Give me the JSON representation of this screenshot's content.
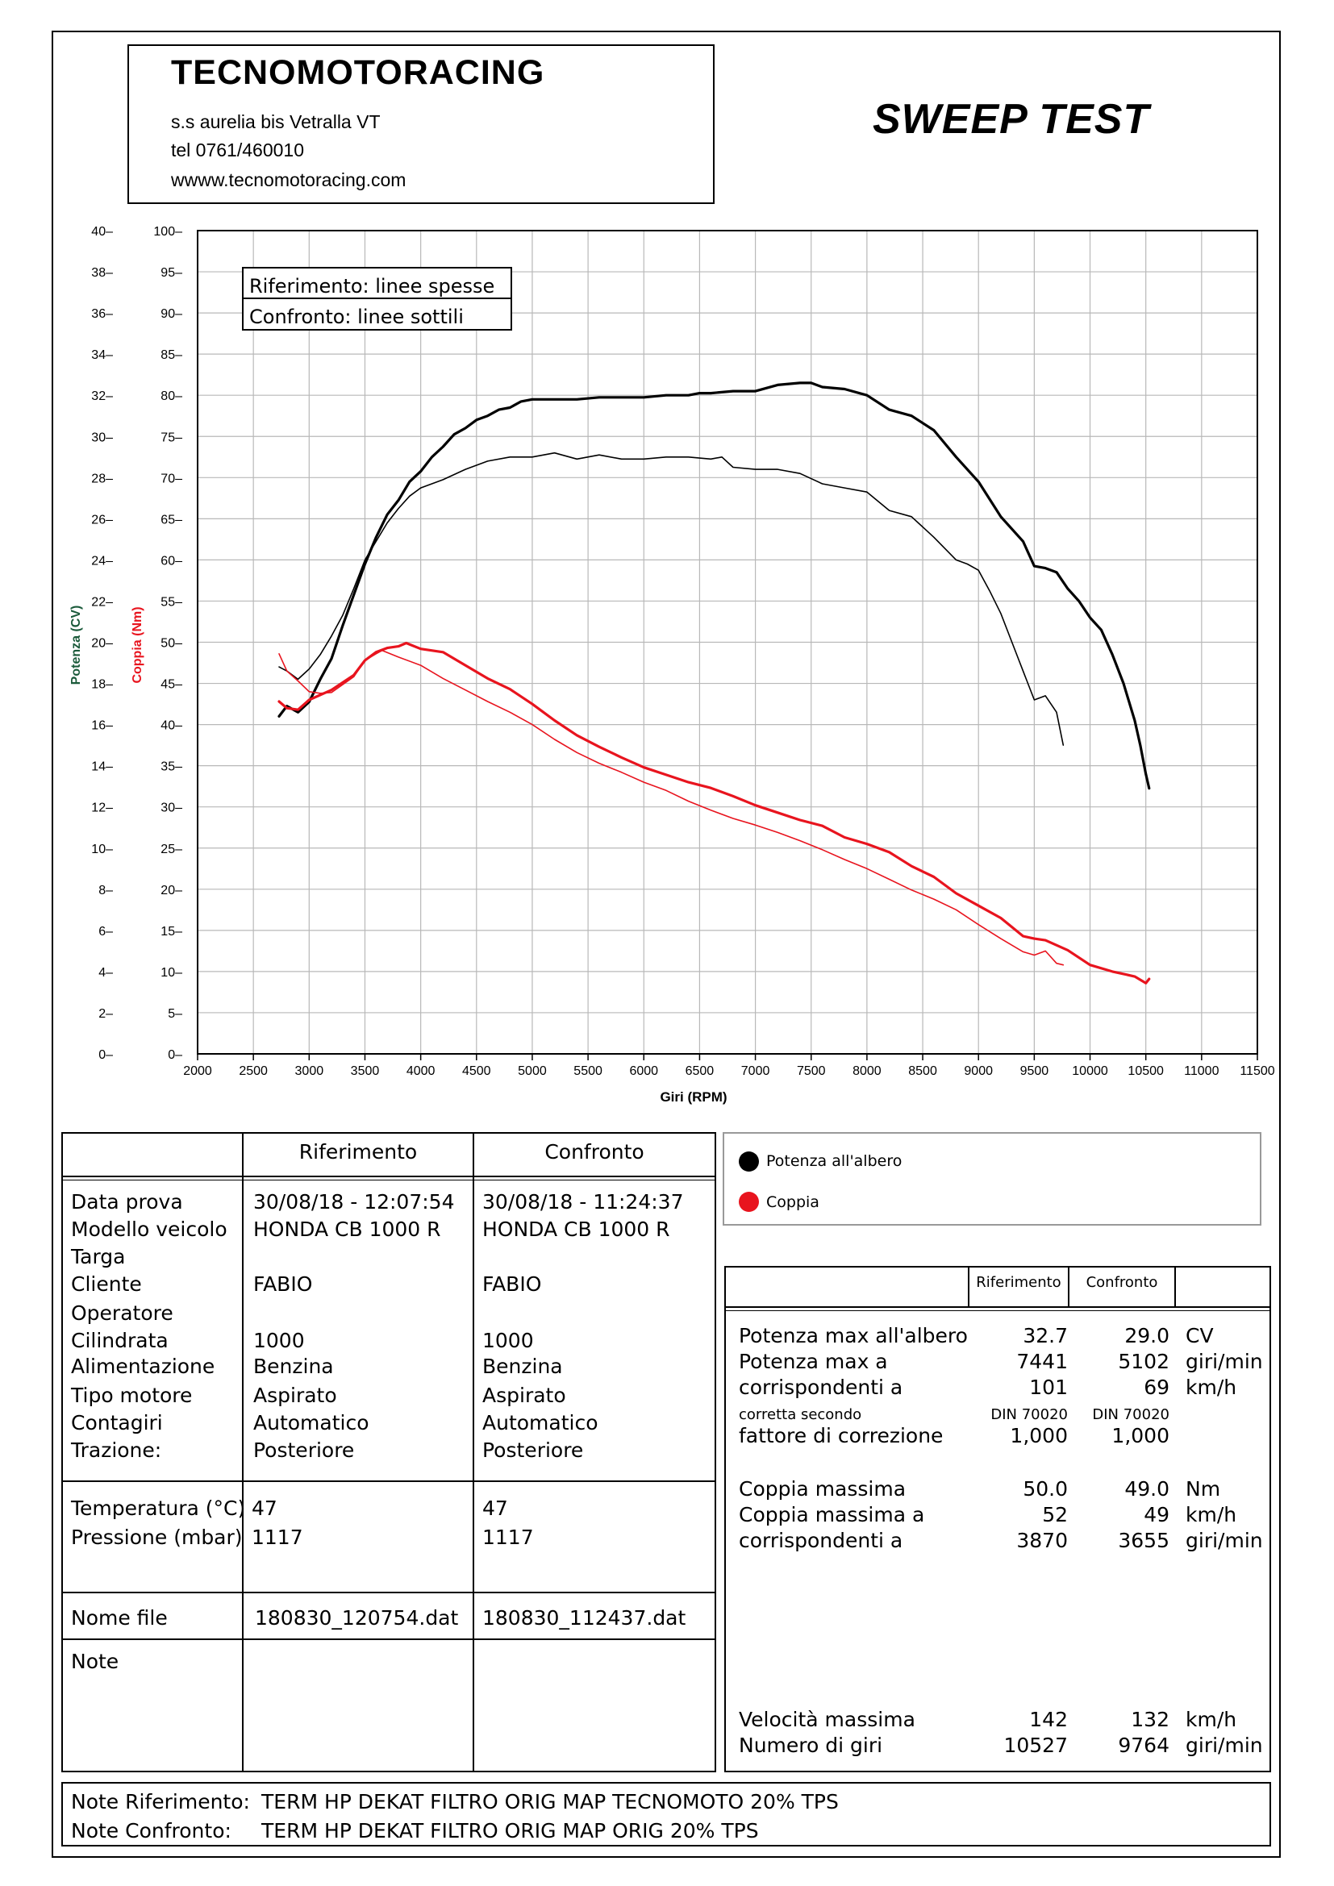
{
  "header": {
    "company": "TECNOMOTORACING",
    "address": "s.s aurelia bis  Vetralla  VT",
    "phone": "tel 0761/460010",
    "website": "wwww.tecnomotoracing.com",
    "test_title": "SWEEP TEST"
  },
  "chart_legend_box": {
    "line1": "Riferimento: linee spesse",
    "line2": "Confronto: linee sottili"
  },
  "chart_data": {
    "type": "line",
    "xlabel": "Giri (RPM)",
    "ylabel_left": "Potenza (CV)",
    "ylabel_right": "Coppia (Nm)",
    "xlim": [
      2000,
      11500
    ],
    "ylim_power": [
      0,
      40
    ],
    "ylim_torque": [
      0,
      100
    ],
    "x_ticks": [
      "2000",
      "2500",
      "3000",
      "3500",
      "4000",
      "4500",
      "5000",
      "5500",
      "6000",
      "6500",
      "7000",
      "7500",
      "8000",
      "8500",
      "9000",
      "9500",
      "10000",
      "10500",
      "11000",
      "11500"
    ],
    "y_ticks_power": [
      "0",
      "2",
      "4",
      "6",
      "8",
      "10",
      "12",
      "14",
      "16",
      "18",
      "20",
      "22",
      "24",
      "26",
      "28",
      "30",
      "32",
      "34",
      "36",
      "38",
      "40"
    ],
    "y_ticks_torque": [
      "0",
      "5",
      "10",
      "15",
      "20",
      "25",
      "30",
      "35",
      "40",
      "45",
      "50",
      "55",
      "60",
      "65",
      "70",
      "75",
      "80",
      "85",
      "90",
      "95",
      "100"
    ],
    "grid": true,
    "series": [
      {
        "name": "Potenza all'albero",
        "run": "Riferimento",
        "axis": "power",
        "color": "#000000",
        "style": "thick",
        "x": [
          2730,
          2800,
          2900,
          3000,
          3100,
          3200,
          3300,
          3400,
          3500,
          3600,
          3700,
          3800,
          3900,
          4000,
          4100,
          4200,
          4300,
          4400,
          4500,
          4600,
          4700,
          4800,
          4900,
          5000,
          5200,
          5400,
          5600,
          5800,
          6000,
          6200,
          6400,
          6500,
          6600,
          6800,
          7000,
          7200,
          7400,
          7500,
          7600,
          7800,
          8000,
          8200,
          8400,
          8600,
          8800,
          9000,
          9200,
          9400,
          9500,
          9600,
          9700,
          9800,
          9900,
          10000,
          10100,
          10200,
          10300,
          10400,
          10450,
          10500,
          10530
        ],
        "y": [
          16.4,
          16.9,
          16.6,
          17.1,
          18.2,
          19.2,
          20.8,
          22.3,
          23.8,
          25.1,
          26.2,
          26.9,
          27.8,
          28.3,
          29.0,
          29.5,
          30.1,
          30.4,
          30.8,
          31.0,
          31.3,
          31.4,
          31.7,
          31.8,
          31.8,
          31.8,
          31.9,
          31.9,
          31.9,
          32.0,
          32.0,
          32.1,
          32.1,
          32.2,
          32.2,
          32.5,
          32.6,
          32.6,
          32.4,
          32.3,
          32.0,
          31.3,
          31.0,
          30.3,
          29.0,
          27.8,
          26.1,
          24.9,
          23.7,
          23.6,
          23.4,
          22.6,
          22.0,
          21.2,
          20.6,
          19.4,
          18.0,
          16.2,
          15.0,
          13.6,
          12.9
        ]
      },
      {
        "name": "Potenza all'albero",
        "run": "Confronto",
        "axis": "power",
        "color": "#000000",
        "style": "thin",
        "x": [
          2730,
          2800,
          2900,
          3000,
          3100,
          3200,
          3300,
          3400,
          3500,
          3600,
          3700,
          3800,
          3900,
          4000,
          4200,
          4400,
          4600,
          4800,
          5000,
          5200,
          5400,
          5600,
          5800,
          6000,
          6200,
          6400,
          6600,
          6700,
          6800,
          7000,
          7200,
          7400,
          7600,
          7800,
          8000,
          8200,
          8400,
          8600,
          8800,
          8900,
          9000,
          9100,
          9200,
          9300,
          9400,
          9500,
          9600,
          9700,
          9760
        ],
        "y": [
          18.8,
          18.6,
          18.2,
          18.7,
          19.4,
          20.3,
          21.3,
          22.6,
          24.0,
          24.9,
          25.8,
          26.5,
          27.1,
          27.5,
          27.9,
          28.4,
          28.8,
          29.0,
          29.0,
          29.2,
          28.9,
          29.1,
          28.9,
          28.9,
          29.0,
          29.0,
          28.9,
          29.0,
          28.5,
          28.4,
          28.4,
          28.2,
          27.7,
          27.5,
          27.3,
          26.4,
          26.1,
          25.1,
          24.0,
          23.8,
          23.5,
          22.5,
          21.4,
          20.0,
          18.6,
          17.2,
          17.4,
          16.6,
          15.0
        ]
      },
      {
        "name": "Coppia",
        "run": "Riferimento",
        "axis": "torque",
        "color": "#e8141e",
        "style": "thick",
        "x": [
          2730,
          2800,
          2900,
          3000,
          3200,
          3400,
          3500,
          3600,
          3700,
          3800,
          3870,
          4000,
          4200,
          4400,
          4600,
          4800,
          5000,
          5200,
          5400,
          5600,
          5800,
          6000,
          6200,
          6400,
          6600,
          6800,
          7000,
          7200,
          7400,
          7600,
          7800,
          8000,
          8200,
          8400,
          8600,
          8800,
          9000,
          9200,
          9400,
          9500,
          9600,
          9800,
          10000,
          10200,
          10400,
          10500,
          10530
        ],
        "y": [
          42.8,
          42.0,
          41.8,
          43.0,
          44.2,
          46.0,
          47.8,
          48.8,
          49.3,
          49.5,
          49.9,
          49.2,
          48.8,
          47.2,
          45.6,
          44.3,
          42.5,
          40.5,
          38.7,
          37.3,
          36.0,
          34.8,
          33.9,
          33.0,
          32.3,
          31.3,
          30.2,
          29.3,
          28.4,
          27.7,
          26.3,
          25.5,
          24.5,
          22.8,
          21.5,
          19.5,
          18.0,
          16.5,
          14.3,
          14.0,
          13.8,
          12.6,
          10.8,
          10.0,
          9.4,
          8.6,
          9.1
        ]
      },
      {
        "name": "Coppia",
        "run": "Confronto",
        "axis": "torque",
        "color": "#e8141e",
        "style": "thin",
        "x": [
          2730,
          2800,
          2900,
          3000,
          3100,
          3200,
          3400,
          3500,
          3600,
          3655,
          3800,
          4000,
          4200,
          4400,
          4600,
          4800,
          5000,
          5200,
          5400,
          5600,
          5800,
          6000,
          6200,
          6400,
          6600,
          6800,
          7000,
          7200,
          7400,
          7600,
          7800,
          8000,
          8200,
          8400,
          8600,
          8800,
          9000,
          9200,
          9400,
          9500,
          9600,
          9700,
          9760
        ],
        "y": [
          48.6,
          46.5,
          45.3,
          44.0,
          43.8,
          43.9,
          45.8,
          47.8,
          48.6,
          49.0,
          48.2,
          47.2,
          45.6,
          44.2,
          42.8,
          41.5,
          40.0,
          38.2,
          36.6,
          35.3,
          34.2,
          33.0,
          32.0,
          30.7,
          29.6,
          28.6,
          27.8,
          26.9,
          25.9,
          24.8,
          23.6,
          22.5,
          21.2,
          19.9,
          18.8,
          17.5,
          15.7,
          14.0,
          12.4,
          12.0,
          12.5,
          11.0,
          10.8
        ]
      }
    ]
  },
  "info_table": {
    "col_headers": [
      "Riferimento",
      "Confronto"
    ],
    "labels_block1": [
      "Data prova",
      "Modello veicolo",
      "Targa",
      "Cliente",
      "Operatore",
      "Cilindrata",
      "Alimentazione",
      "Tipo motore",
      "Contagiri",
      "Trazione:"
    ],
    "rif_block1": [
      "30/08/18 - 12:07:54",
      "HONDA CB 1000 R",
      "",
      "FABIO",
      "",
      "1000",
      "Benzina",
      "Aspirato",
      "Automatico",
      "Posteriore"
    ],
    "conf_block1": [
      "30/08/18 - 11:24:37",
      "HONDA CB 1000 R",
      "",
      "FABIO",
      "",
      "1000",
      "Benzina",
      "Aspirato",
      "Automatico",
      "Posteriore"
    ],
    "labels_block2": [
      "Temperatura (°C)",
      "Pressione (mbar)"
    ],
    "rif_block2": [
      "47",
      "1117"
    ],
    "conf_block2": [
      "47",
      "1117"
    ],
    "file_label": "Nome file",
    "rif_file": "180830_120754.dat",
    "conf_file": "180830_112437.dat",
    "note_label": "Note"
  },
  "series_legend": {
    "power": "Potenza all'albero",
    "torque": "Coppia"
  },
  "results_table": {
    "col_headers": [
      "Riferimento",
      "Confronto"
    ],
    "power_labels": [
      "Potenza max all'albero",
      "Potenza max a",
      "corrispondenti a",
      "corretta secondo",
      "fattore di correzione"
    ],
    "power_rif": [
      "32.7",
      "7441",
      "101",
      "DIN 70020",
      "1,000"
    ],
    "power_conf": [
      "29.0",
      "5102",
      "69",
      "DIN 70020",
      "1,000"
    ],
    "power_units": [
      "CV",
      "giri/min",
      "km/h",
      "",
      ""
    ],
    "torque_labels": [
      "Coppia massima",
      "Coppia massima a",
      "corrispondenti a"
    ],
    "torque_rif": [
      "50.0",
      "52",
      "3870"
    ],
    "torque_conf": [
      "49.0",
      "49",
      "3655"
    ],
    "torque_units": [
      "Nm",
      "km/h",
      "giri/min"
    ],
    "speed_labels": [
      "Velocità massima",
      "Numero di giri"
    ],
    "speed_rif": [
      "142",
      "10527"
    ],
    "speed_conf": [
      "132",
      "9764"
    ],
    "speed_units": [
      "km/h",
      "giri/min"
    ]
  },
  "notes": {
    "rif_label": "Note Riferimento:",
    "rif_text": "TERM HP DEKAT  FILTRO ORIG MAP TECNOMOTO 20% TPS",
    "conf_label": "Note Confronto:",
    "conf_text": "TERM HP DEKAT  FILTRO ORIG MAP ORIG 20% TPS"
  }
}
